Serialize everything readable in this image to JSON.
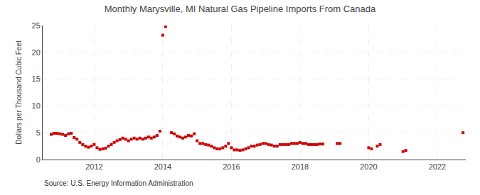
{
  "chart_data": {
    "type": "scatter",
    "title": "Monthly Marysville, MI Natural Gas Pipeline Imports From Canada",
    "ylabel": "Dollars per Thousand Cubic Feet",
    "annotations": [
      "Source: U.S. Energy Information Administration"
    ],
    "color": "#cc0000",
    "marker": "square",
    "grid": true,
    "xlim": [
      2010.5,
      2022.83
    ],
    "xticks": [
      2012,
      2014,
      2016,
      2018,
      2020,
      2022
    ],
    "ylim": [
      0,
      25
    ],
    "yticks": [
      0,
      5,
      10,
      15,
      20,
      25
    ],
    "x": [
      2010.75,
      2010.8333333333333,
      2010.9166666666667,
      2011,
      2011.0833333333333,
      2011.1666666666667,
      2011.25,
      2011.3333333333333,
      2011.4166666666667,
      2011.5,
      2011.5833333333333,
      2011.6666666666667,
      2011.75,
      2011.8333333333333,
      2011.9166666666667,
      2012,
      2012.0833333333333,
      2012.1666666666667,
      2012.25,
      2012.3333333333333,
      2012.4166666666667,
      2012.5,
      2012.5833333333333,
      2012.6666666666667,
      2012.75,
      2012.8333333333333,
      2012.9166666666667,
      2013,
      2013.0833333333333,
      2013.1666666666667,
      2013.25,
      2013.3333333333333,
      2013.4166666666667,
      2013.5,
      2013.5833333333333,
      2013.6666666666667,
      2013.75,
      2013.8333333333333,
      2013.9166666666667,
      2014,
      2014.0833333333333,
      2014.25,
      2014.3333333333333,
      2014.4166666666667,
      2014.5,
      2014.5833333333333,
      2014.6666666666667,
      2014.75,
      2014.8333333333333,
      2014.9166666666667,
      2015,
      2015.0833333333333,
      2015.1666666666667,
      2015.25,
      2015.3333333333333,
      2015.4166666666667,
      2015.5,
      2015.5833333333333,
      2015.6666666666667,
      2015.75,
      2015.8333333333333,
      2015.9166666666667,
      2016,
      2016.0833333333333,
      2016.1666666666667,
      2016.25,
      2016.3333333333333,
      2016.4166666666667,
      2016.5,
      2016.5833333333333,
      2016.6666666666667,
      2016.75,
      2016.8333333333333,
      2016.9166666666667,
      2017,
      2017.0833333333333,
      2017.1666666666667,
      2017.25,
      2017.3333333333333,
      2017.4166666666667,
      2017.5,
      2017.5833333333333,
      2017.6666666666667,
      2017.75,
      2017.8333333333333,
      2017.9166666666667,
      2018,
      2018.0833333333333,
      2018.1666666666667,
      2018.25,
      2018.3333333333333,
      2018.4166666666667,
      2018.5,
      2018.5833333333333,
      2018.6666666666667,
      2019.0833333333333,
      2019.1666666666667,
      2020,
      2020.0833333333333,
      2020.25,
      2020.3333333333333,
      2021,
      2021.0833333333333,
      2022.75
    ],
    "values": [
      4.7,
      4.9,
      4.9,
      4.8,
      4.7,
      4.5,
      4.8,
      4.9,
      4.1,
      3.8,
      3.2,
      2.8,
      2.5,
      2.3,
      2.5,
      2.8,
      2.2,
      1.9,
      2.0,
      2.1,
      2.5,
      2.8,
      3.2,
      3.5,
      3.7,
      4.0,
      3.8,
      3.5,
      3.8,
      4.0,
      3.8,
      4.0,
      3.8,
      4.0,
      4.2,
      4.0,
      4.2,
      4.5,
      5.3,
      23.2,
      24.8,
      5.0,
      4.8,
      4.4,
      4.2,
      4.0,
      4.2,
      4.5,
      4.4,
      4.8,
      3.5,
      3.0,
      3.0,
      2.8,
      2.7,
      2.5,
      2.2,
      2.0,
      2.0,
      2.2,
      2.5,
      3.0,
      2.2,
      1.8,
      1.8,
      1.7,
      1.8,
      2.0,
      2.2,
      2.5,
      2.5,
      2.7,
      2.8,
      3.0,
      3.0,
      2.8,
      2.7,
      2.5,
      2.5,
      2.8,
      2.8,
      2.8,
      2.8,
      3.0,
      3.0,
      3.0,
      3.2,
      3.0,
      3.0,
      2.8,
      2.8,
      2.8,
      2.8,
      2.9,
      2.9,
      3.0,
      3.0,
      2.2,
      2.0,
      2.5,
      2.8,
      1.5,
      1.7,
      5.0
    ]
  }
}
